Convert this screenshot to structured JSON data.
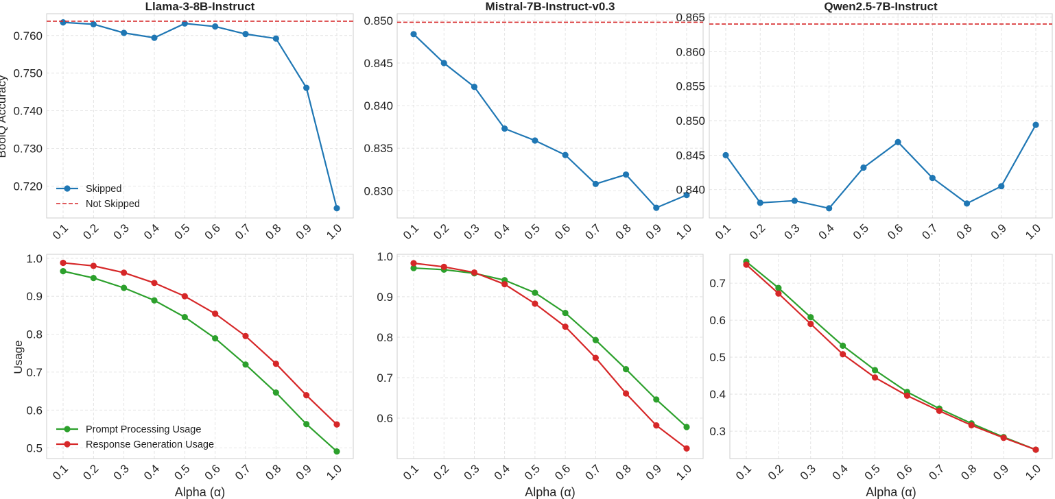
{
  "colors": {
    "skipped": "#1f77b4",
    "not_skipped": "#d62728",
    "prompt": "#2ca02c",
    "response": "#d62728",
    "grid": "#dddddd",
    "frame": "#cccccc"
  },
  "figure": {
    "top_ylabel": "BoolQ Accuracy",
    "bottom_ylabel": "Usage",
    "xlabel": "Alpha (α)"
  },
  "chart_data": [
    {
      "type": "line",
      "title": "Llama-3-8B-Instruct",
      "ylabel": "BoolQ Accuracy",
      "xlabel": "",
      "categories": [
        "0.1",
        "0.2",
        "0.3",
        "0.4",
        "0.5",
        "0.6",
        "0.7",
        "0.8",
        "0.9",
        "1.0"
      ],
      "ylim": [
        0.7115,
        0.7658
      ],
      "yticks": [
        "0.720",
        "0.730",
        "0.740",
        "0.750",
        "0.760"
      ],
      "ytick_values": [
        0.72,
        0.73,
        0.74,
        0.75,
        0.76
      ],
      "series": [
        {
          "name": "Skipped",
          "style": "line-marker",
          "color_key": "skipped",
          "values": [
            0.7635,
            0.763,
            0.7607,
            0.7594,
            0.7632,
            0.7624,
            0.7604,
            0.7592,
            0.7461,
            0.7141
          ]
        },
        {
          "name": "Not Skipped",
          "style": "hline-dashed",
          "color_key": "not_skipped",
          "value": 0.7638
        }
      ],
      "legend": "bottom-left"
    },
    {
      "type": "line",
      "title": "Mistral-7B-Instruct-v0.3",
      "ylabel": "",
      "xlabel": "",
      "categories": [
        "0.1",
        "0.2",
        "0.3",
        "0.4",
        "0.5",
        "0.6",
        "0.7",
        "0.8",
        "0.9",
        "1.0"
      ],
      "ylim": [
        0.8268,
        0.8508
      ],
      "yticks": [
        "0.830",
        "0.835",
        "0.840",
        "0.845",
        "0.850"
      ],
      "ytick_values": [
        0.83,
        0.835,
        0.84,
        0.845,
        0.85
      ],
      "series": [
        {
          "name": "Skipped",
          "style": "line-marker",
          "color_key": "skipped",
          "values": [
            0.8484,
            0.845,
            0.8422,
            0.8373,
            0.8359,
            0.8342,
            0.8308,
            0.8319,
            0.828,
            0.8295
          ]
        },
        {
          "name": "Not Skipped",
          "style": "hline-dashed",
          "color_key": "not_skipped",
          "value": 0.8498
        }
      ],
      "legend": "none"
    },
    {
      "type": "line",
      "title": "Qwen2.5-7B-Instruct",
      "ylabel": "",
      "xlabel": "",
      "categories": [
        "0.1",
        "0.2",
        "0.3",
        "0.4",
        "0.5",
        "0.6",
        "0.7",
        "0.8",
        "0.9",
        "1.0"
      ],
      "ylim": [
        0.8359,
        0.8655
      ],
      "yticks": [
        "0.840",
        "0.845",
        "0.850",
        "0.855",
        "0.860",
        "0.865"
      ],
      "ytick_values": [
        0.84,
        0.845,
        0.85,
        0.855,
        0.86,
        0.865
      ],
      "series": [
        {
          "name": "Skipped",
          "style": "line-marker",
          "color_key": "skipped",
          "values": [
            0.845,
            0.8381,
            0.8384,
            0.8373,
            0.8432,
            0.8469,
            0.8417,
            0.838,
            0.8405,
            0.8494
          ]
        },
        {
          "name": "Not Skipped",
          "style": "hline-dashed",
          "color_key": "not_skipped",
          "value": 0.864
        }
      ],
      "legend": "none"
    },
    {
      "type": "line",
      "title": "",
      "ylabel": "Usage",
      "xlabel": "Alpha (α)",
      "categories": [
        "0.1",
        "0.2",
        "0.3",
        "0.4",
        "0.5",
        "0.6",
        "0.7",
        "0.8",
        "0.9",
        "1.0"
      ],
      "ylim": [
        0.4722,
        1.0105
      ],
      "yticks": [
        "0.5",
        "0.6",
        "0.7",
        "0.8",
        "0.9",
        "1.0"
      ],
      "ytick_values": [
        0.5,
        0.6,
        0.7,
        0.8,
        0.9,
        1.0
      ],
      "series": [
        {
          "name": "Prompt Processing Usage",
          "style": "line-marker",
          "color_key": "prompt",
          "values": [
            0.966,
            0.948,
            0.922,
            0.889,
            0.845,
            0.789,
            0.72,
            0.646,
            0.563,
            0.491
          ]
        },
        {
          "name": "Response Generation Usage",
          "style": "line-marker",
          "color_key": "response",
          "values": [
            0.988,
            0.98,
            0.962,
            0.935,
            0.9,
            0.854,
            0.795,
            0.722,
            0.639,
            0.562
          ]
        }
      ],
      "legend": "bottom-left"
    },
    {
      "type": "line",
      "title": "",
      "ylabel": "",
      "xlabel": "Alpha (α)",
      "categories": [
        "0.1",
        "0.2",
        "0.3",
        "0.4",
        "0.5",
        "0.6",
        "0.7",
        "0.8",
        "0.9",
        "1.0"
      ],
      "ylim": [
        0.5,
        1.005
      ],
      "yticks": [
        "0.6",
        "0.7",
        "0.8",
        "0.9",
        "1.0"
      ],
      "ytick_values": [
        0.6,
        0.7,
        0.8,
        0.9,
        1.0
      ],
      "series": [
        {
          "name": "Prompt Processing Usage",
          "style": "line-marker",
          "color_key": "prompt",
          "values": [
            0.971,
            0.967,
            0.958,
            0.941,
            0.91,
            0.86,
            0.793,
            0.721,
            0.646,
            0.578
          ]
        },
        {
          "name": "Response Generation Usage",
          "style": "line-marker",
          "color_key": "response",
          "values": [
            0.983,
            0.974,
            0.96,
            0.931,
            0.883,
            0.826,
            0.749,
            0.661,
            0.582,
            0.525
          ]
        }
      ],
      "legend": "none"
    },
    {
      "type": "line",
      "title": "",
      "ylabel": "",
      "xlabel": "Alpha (α)",
      "categories": [
        "0.1",
        "0.2",
        "0.3",
        "0.4",
        "0.5",
        "0.6",
        "0.7",
        "0.8",
        "0.9",
        "1.0"
      ],
      "ylim": [
        0.226,
        0.778
      ],
      "yticks": [
        "0.3",
        "0.4",
        "0.5",
        "0.6",
        "0.7"
      ],
      "ytick_values": [
        0.3,
        0.4,
        0.5,
        0.6,
        0.7
      ],
      "series": [
        {
          "name": "Prompt Processing Usage",
          "style": "line-marker",
          "color_key": "prompt",
          "values": [
            0.758,
            0.687,
            0.608,
            0.531,
            0.465,
            0.406,
            0.361,
            0.321,
            0.284,
            0.25
          ]
        },
        {
          "name": "Response Generation Usage",
          "style": "line-marker",
          "color_key": "response",
          "values": [
            0.75,
            0.672,
            0.59,
            0.508,
            0.445,
            0.396,
            0.355,
            0.316,
            0.282,
            0.25
          ]
        }
      ],
      "legend": "none"
    }
  ]
}
